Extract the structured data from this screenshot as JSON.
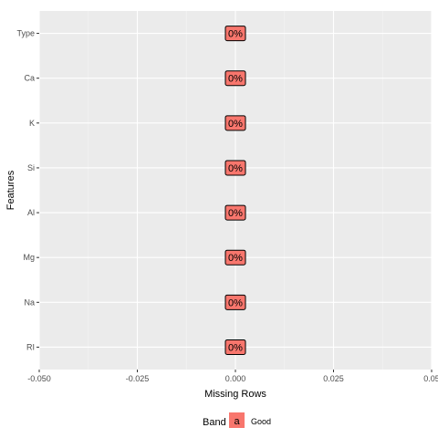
{
  "chart_data": {
    "type": "bar",
    "orientation": "horizontal",
    "categories": [
      "RI",
      "Na",
      "Mg",
      "Al",
      "Si",
      "K",
      "Ca",
      "Type"
    ],
    "values": [
      0,
      0,
      0,
      0,
      0,
      0,
      0,
      0
    ],
    "data_labels": [
      "0%",
      "0%",
      "0%",
      "0%",
      "0%",
      "0%",
      "0%",
      "0%"
    ],
    "xlabel": "Missing Rows",
    "ylabel": "Features",
    "xlim": [
      -0.05,
      0.05
    ],
    "x_ticks": [
      -0.05,
      -0.025,
      0,
      0.025,
      0.05
    ],
    "x_tick_labels": [
      "-0.050",
      "-0.025",
      "0.000",
      "0.025",
      "0.05"
    ],
    "grid": true,
    "legend": {
      "title": "Band",
      "position": "bottom",
      "key_symbol": "a",
      "items": [
        {
          "label": "Good",
          "color": "#f8766d"
        }
      ]
    },
    "colors": {
      "panel_background": "#ebebeb",
      "grid_major": "#ffffff",
      "grid_minor": "#f5f5f5",
      "label_fill": "#f8766d",
      "label_border": "#000000"
    }
  }
}
